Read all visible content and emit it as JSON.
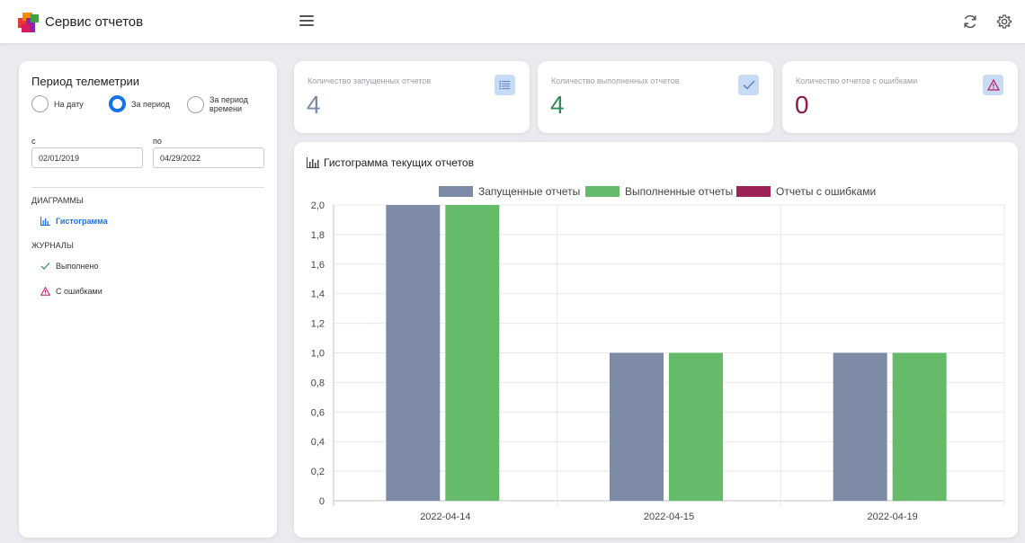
{
  "header": {
    "title": "Сервис отчетов",
    "icons": {
      "menu": "menu-icon",
      "refresh": "refresh-icon",
      "settings": "gear-icon"
    }
  },
  "sidebar": {
    "period_title": "Период телеметрии",
    "radios": [
      {
        "label_line1": "На дату",
        "label_line2": "",
        "selected": false
      },
      {
        "label_line1": "За период",
        "label_line2": "",
        "selected": true
      },
      {
        "label_line1": "За период",
        "label_line2": "времени",
        "selected": false
      }
    ],
    "from_label": "с",
    "from_value": "02/01/2019",
    "to_label": "по",
    "to_value": "04/29/2022",
    "diagrams_heading": "ДИАГРАММЫ",
    "histogram_item": "Гистограмма",
    "journals_heading": "ЖУРНАЛЫ",
    "done_item": "Выполнено",
    "errors_item": "С ошибками"
  },
  "stats": [
    {
      "label": "Количество запущенных отчетов",
      "value": "4",
      "color": "#7d8aa3",
      "icon": "list-icon"
    },
    {
      "label": "Количество выполненных отчетов",
      "value": "4",
      "color": "#2e8b57",
      "icon": "check-icon"
    },
    {
      "label": "Количество отчетов с ошибками",
      "value": "0",
      "color": "#8b1a4a",
      "icon": "warning-icon"
    }
  ],
  "chart_title": "Гистограмма текущих отчетов",
  "chart_data": {
    "type": "bar",
    "categories": [
      "2022-04-14",
      "2022-04-15",
      "2022-04-19"
    ],
    "series": [
      {
        "name": "Запущенные отчеты",
        "values": [
          2,
          1,
          1
        ],
        "color": "#7d8ba6"
      },
      {
        "name": "Выполненные отчеты",
        "values": [
          2,
          1,
          1
        ],
        "color": "#66bb6a"
      },
      {
        "name": "Отчеты с ошибками",
        "values": [
          0,
          0,
          0
        ],
        "color": "#9c2258"
      }
    ],
    "ylim": [
      0,
      2
    ],
    "yticks": [
      "0",
      "0,2",
      "0,4",
      "0,6",
      "0,8",
      "1,0",
      "1,2",
      "1,4",
      "1,6",
      "1,8",
      "2,0"
    ],
    "grid": true,
    "legend": "top"
  }
}
